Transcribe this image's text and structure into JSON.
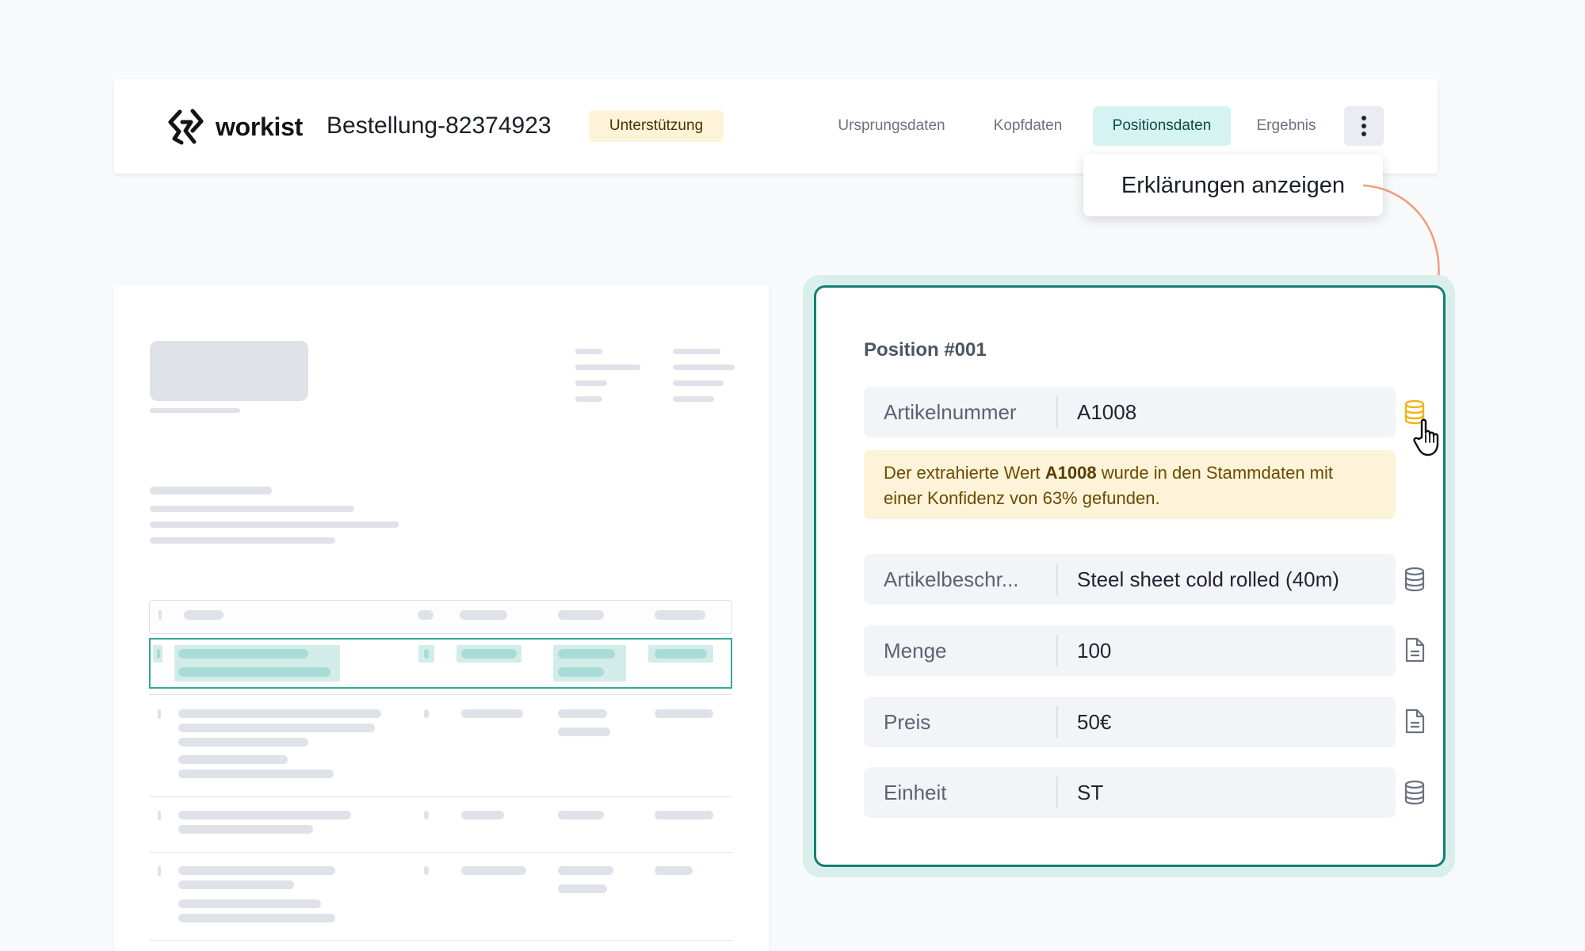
{
  "header": {
    "brand": "workist",
    "order_title": "Bestellung-82374923",
    "badge": "Unterstützung",
    "tabs": [
      {
        "label": "Ursprungsdaten",
        "active": false
      },
      {
        "label": "Kopfdaten",
        "active": false
      },
      {
        "label": "Positionsdaten",
        "active": true
      },
      {
        "label": "Ergebnis",
        "active": false
      }
    ],
    "more_menu_icon": "kebab-vertical-icon",
    "tooltip": "Erklärungen anzeigen"
  },
  "position": {
    "title": "Position #001",
    "fields": [
      {
        "label": "Artikelnummer",
        "value": "A1008",
        "source_icon": "database-icon",
        "highlighted": true
      },
      {
        "label": "Artikelbeschr...",
        "value": "Steel sheet cold rolled (40m)",
        "source_icon": "database-icon"
      },
      {
        "label": "Menge",
        "value": "100",
        "source_icon": "document-icon"
      },
      {
        "label": "Preis",
        "value": "50€",
        "source_icon": "document-icon"
      },
      {
        "label": "Einheit",
        "value": "ST",
        "source_icon": "database-icon"
      }
    ],
    "explanation": {
      "before": "Der extrahierte Wert ",
      "value": "A1008",
      "after": " wurde in den Stammdaten mit einer Konfidenz von 63% gefunden."
    }
  },
  "colors": {
    "accent": "#157f73",
    "active_tab_bg": "#d5f3f0",
    "badge_bg": "#fdf3d8",
    "highlight_icon": "#f2b21b",
    "arrow": "#f39b7c"
  }
}
